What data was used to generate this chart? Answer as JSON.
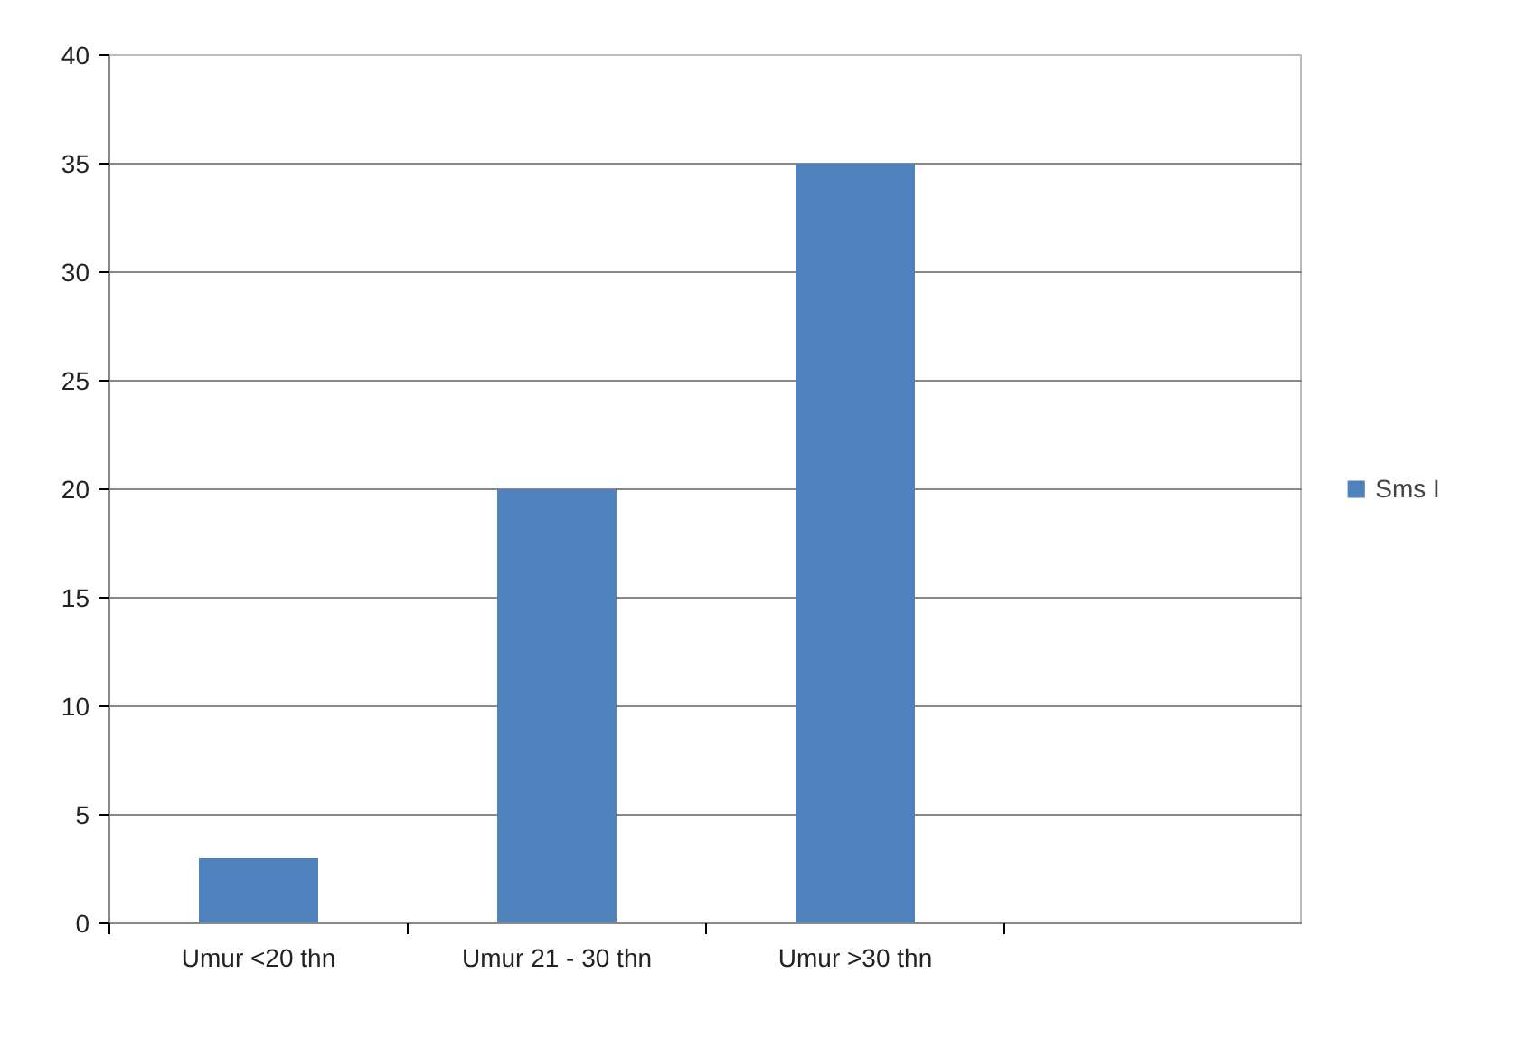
{
  "chart_data": {
    "type": "bar",
    "categories": [
      "Umur <20 thn",
      "Umur 21 - 30 thn",
      "Umur >30 thn",
      null
    ],
    "series": [
      {
        "name": "Sms I",
        "color": "#4f81bd",
        "values": [
          3,
          20,
          35,
          null
        ]
      }
    ],
    "ylim": [
      0,
      40
    ],
    "yticks": [
      0,
      5,
      10,
      15,
      20,
      25,
      30,
      35,
      40
    ],
    "grid": "y",
    "legend": "right"
  }
}
